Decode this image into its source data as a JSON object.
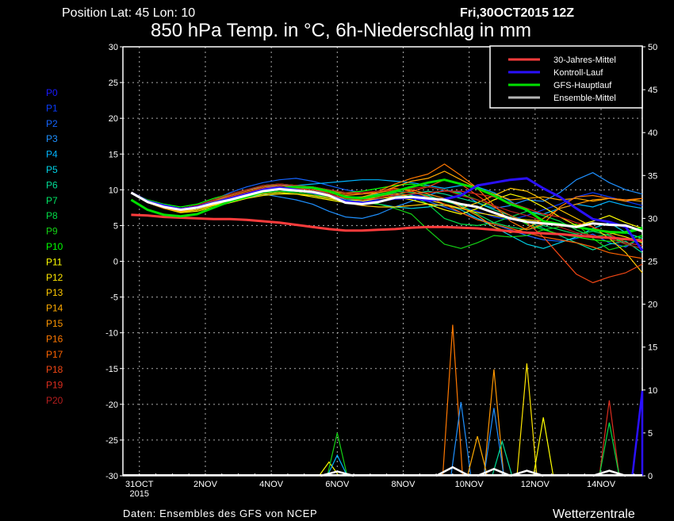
{
  "header": {
    "position": "Position  Lat: 45 Lon: 10",
    "run": "Fri,30OCT2015 12Z",
    "title": "850 hPa Temp. in °C, 6h-Niederschlag in mm"
  },
  "footer": {
    "source": "Daten: Ensembles des GFS von NCEP",
    "brand": "Wetterzentrale"
  },
  "members": [
    {
      "label": "P0",
      "color": "#1a1aff"
    },
    {
      "label": "P1",
      "color": "#0a3cff"
    },
    {
      "label": "P2",
      "color": "#1464ff"
    },
    {
      "label": "P3",
      "color": "#1e90ff"
    },
    {
      "label": "P4",
      "color": "#00b4ff"
    },
    {
      "label": "P5",
      "color": "#00d2e6"
    },
    {
      "label": "P6",
      "color": "#00dc96"
    },
    {
      "label": "P7",
      "color": "#00e664"
    },
    {
      "label": "P8",
      "color": "#00dc46"
    },
    {
      "label": "P9",
      "color": "#14d214"
    },
    {
      "label": "P10",
      "color": "#00ff00"
    },
    {
      "label": "P11",
      "color": "#ffff00"
    },
    {
      "label": "P12",
      "color": "#ffe600"
    },
    {
      "label": "P13",
      "color": "#ffc800"
    },
    {
      "label": "P14",
      "color": "#ffaa00"
    },
    {
      "label": "P15",
      "color": "#ff9600"
    },
    {
      "label": "P16",
      "color": "#ff7800"
    },
    {
      "label": "P17",
      "color": "#ff6400"
    },
    {
      "label": "P18",
      "color": "#f04614"
    },
    {
      "label": "P19",
      "color": "#dc2d1e"
    },
    {
      "label": "P20",
      "color": "#b41e1e"
    }
  ],
  "chart_data": {
    "type": "line",
    "title": "850 hPa Temp. in °C, 6h-Niederschlag in mm",
    "x_ticks": [
      {
        "time": "10-31 00Z",
        "label": "31OCT",
        "label2": "2015"
      },
      {
        "time": "11-02 00Z",
        "label": "2NOV"
      },
      {
        "time": "11-04 00Z",
        "label": "4NOV"
      },
      {
        "time": "11-06 00Z",
        "label": "6NOV"
      },
      {
        "time": "11-08 00Z",
        "label": "8NOV"
      },
      {
        "time": "11-10 00Z",
        "label": "10NOV"
      },
      {
        "time": "11-12 00Z",
        "label": "12NOV"
      },
      {
        "time": "11-14 00Z",
        "label": "14NOV"
      }
    ],
    "xlim": [
      "10-30 12Z",
      "11-15 06Z"
    ],
    "y_left": {
      "lim": [
        -30,
        30
      ],
      "ticks": [
        30,
        25,
        20,
        15,
        10,
        5,
        0,
        -5,
        -10,
        -15,
        -20,
        -25,
        -30
      ]
    },
    "y_right": {
      "lim": [
        0,
        50
      ],
      "ticks": [
        50,
        45,
        40,
        35,
        30,
        25,
        20,
        15,
        10,
        5,
        0
      ]
    },
    "grid": true,
    "legend_placement": "top-right",
    "legend": [
      {
        "name": "30-Jahres-Mittel",
        "color": "#ff3c3c"
      },
      {
        "name": "Kontroll-Lauf",
        "color": "#2a10ff"
      },
      {
        "name": "GFS-Hauptlauf",
        "color": "#00e000"
      },
      {
        "name": "Ensemble-Mittel",
        "color": "#b4b4b4"
      }
    ],
    "times": [
      "10-30 18Z",
      "10-31 06Z",
      "10-31 18Z",
      "11-01 06Z",
      "11-01 18Z",
      "11-02 06Z",
      "11-02 18Z",
      "11-03 06Z",
      "11-03 18Z",
      "11-04 06Z",
      "11-04 18Z",
      "11-05 06Z",
      "11-05 18Z",
      "11-06 06Z",
      "11-06 18Z",
      "11-07 06Z",
      "11-07 18Z",
      "11-08 06Z",
      "11-08 18Z",
      "11-09 06Z",
      "11-09 18Z",
      "11-10 06Z",
      "11-10 18Z",
      "11-11 06Z",
      "11-11 18Z",
      "11-12 06Z",
      "11-12 18Z",
      "11-13 06Z",
      "11-13 18Z",
      "11-14 06Z",
      "11-14 18Z",
      "11-15 06Z"
    ],
    "temperature": {
      "members": [
        [
          9.6,
          8.4,
          7.8,
          7.4,
          7.7,
          8.4,
          9.0,
          9.6,
          10.2,
          10.6,
          10.4,
          10.0,
          9.4,
          8.6,
          8.4,
          8.7,
          9.2,
          9.3,
          9.0,
          8.6,
          7.6,
          7.0,
          6.2,
          5.8,
          6.4,
          7.2,
          8.0,
          9.0,
          9.6,
          9.0,
          8.4,
          7.8
        ],
        [
          9.6,
          8.2,
          7.4,
          7.0,
          7.6,
          8.6,
          9.6,
          10.4,
          11.0,
          11.4,
          11.6,
          11.2,
          10.6,
          10.0,
          9.6,
          9.4,
          9.2,
          8.8,
          8.4,
          7.6,
          6.8,
          6.0,
          5.2,
          4.4,
          3.6,
          3.0,
          2.8,
          3.2,
          3.8,
          2.6,
          2.0,
          3.4
        ],
        [
          9.6,
          8.3,
          7.5,
          7.0,
          7.2,
          7.8,
          8.2,
          8.8,
          9.4,
          9.0,
          8.6,
          8.0,
          7.0,
          6.2,
          6.0,
          6.6,
          7.6,
          8.4,
          9.2,
          10.0,
          9.6,
          8.2,
          7.4,
          7.8,
          8.6,
          8.4,
          9.6,
          11.4,
          12.4,
          11.0,
          10.0,
          9.4
        ],
        [
          9.6,
          8.4,
          7.8,
          7.4,
          7.8,
          8.6,
          9.4,
          10.0,
          10.4,
          10.6,
          10.6,
          10.8,
          11.0,
          11.2,
          11.4,
          11.4,
          11.2,
          11.0,
          10.6,
          10.2,
          10.6,
          10.4,
          9.6,
          8.4,
          7.0,
          6.6,
          7.4,
          8.0,
          7.6,
          8.4,
          7.8,
          7.4
        ],
        [
          9.6,
          8.2,
          7.6,
          7.2,
          7.4,
          8.0,
          8.6,
          9.2,
          9.6,
          9.8,
          9.8,
          9.6,
          9.2,
          8.6,
          8.2,
          8.0,
          7.6,
          7.4,
          7.6,
          8.0,
          7.2,
          6.0,
          4.8,
          3.6,
          2.4,
          1.8,
          2.6,
          3.4,
          4.6,
          5.4,
          4.0,
          3.2
        ],
        [
          9.6,
          8.3,
          7.6,
          7.2,
          7.6,
          8.2,
          8.8,
          9.4,
          10.0,
          10.2,
          10.0,
          9.8,
          9.4,
          8.6,
          8.6,
          8.8,
          9.0,
          9.4,
          9.8,
          9.4,
          8.8,
          8.2,
          7.2,
          6.4,
          5.6,
          4.6,
          3.6,
          2.6,
          1.6,
          2.4,
          2.8,
          1.2
        ],
        [
          9.6,
          8.4,
          7.6,
          7.3,
          7.8,
          8.6,
          9.2,
          9.8,
          10.4,
          10.8,
          10.6,
          10.2,
          9.6,
          9.0,
          9.0,
          9.4,
          9.8,
          9.6,
          9.2,
          8.4,
          7.8,
          6.6,
          5.4,
          4.8,
          4.4,
          5.0,
          4.4,
          3.8,
          4.2,
          3.6,
          2.4,
          1.8
        ],
        [
          9.6,
          8.2,
          7.4,
          7.0,
          7.2,
          7.8,
          8.4,
          9.0,
          9.6,
          9.8,
          9.6,
          9.4,
          8.8,
          8.4,
          8.6,
          9.0,
          9.6,
          9.2,
          8.0,
          6.0,
          5.2,
          5.0,
          5.4,
          6.2,
          7.0,
          6.4,
          5.6,
          4.4,
          3.4,
          3.8,
          4.2,
          4.8
        ],
        [
          9.6,
          8.4,
          7.8,
          7.4,
          7.6,
          8.2,
          8.8,
          9.2,
          9.6,
          9.8,
          9.6,
          9.4,
          9.0,
          8.4,
          8.2,
          8.0,
          7.4,
          6.6,
          4.4,
          2.4,
          1.8,
          2.6,
          3.6,
          3.4,
          3.6,
          4.4,
          4.8,
          5.2,
          3.2,
          1.6,
          2.2,
          3.4
        ],
        [
          9.6,
          8.6,
          8.0,
          7.6,
          8.0,
          8.8,
          9.4,
          10.0,
          10.6,
          10.8,
          10.6,
          10.2,
          9.8,
          9.6,
          9.8,
          10.2,
          10.6,
          10.8,
          10.4,
          10.0,
          9.4,
          8.6,
          7.6,
          6.4,
          5.2,
          4.4,
          3.8,
          3.4,
          3.0,
          2.8,
          3.0,
          3.6
        ],
        [
          9.6,
          8.4,
          7.6,
          7.0,
          7.2,
          7.8,
          8.4,
          9.0,
          9.4,
          9.6,
          9.4,
          9.0,
          8.6,
          8.2,
          8.4,
          8.8,
          9.0,
          8.6,
          8.0,
          7.2,
          6.6,
          7.4,
          8.6,
          9.4,
          8.8,
          7.6,
          6.2,
          5.0,
          5.6,
          6.4,
          5.4,
          4.6
        ],
        [
          9.6,
          8.2,
          7.4,
          6.8,
          7.0,
          7.6,
          8.2,
          8.8,
          9.2,
          9.4,
          9.4,
          9.2,
          8.8,
          8.4,
          8.6,
          9.0,
          9.4,
          9.0,
          8.6,
          8.0,
          7.4,
          6.8,
          6.4,
          6.0,
          5.8,
          5.6,
          5.2,
          4.8,
          4.4,
          4.0,
          3.4,
          2.6
        ],
        [
          9.6,
          8.3,
          7.5,
          6.9,
          7.2,
          7.9,
          8.6,
          9.2,
          9.8,
          10.0,
          9.8,
          9.6,
          9.0,
          8.2,
          7.8,
          7.6,
          7.6,
          7.8,
          8.0,
          7.8,
          7.4,
          8.2,
          9.2,
          10.2,
          9.8,
          8.6,
          7.2,
          6.0,
          4.8,
          3.2,
          1.2,
          -1.6
        ],
        [
          9.6,
          8.4,
          7.6,
          7.1,
          7.4,
          8.0,
          8.8,
          9.4,
          10.0,
          10.2,
          10.0,
          9.8,
          9.2,
          8.8,
          9.0,
          9.6,
          10.4,
          11.2,
          11.6,
          12.6,
          11.4,
          10.2,
          9.4,
          8.6,
          8.8,
          9.0,
          8.6,
          8.8,
          8.4,
          8.8,
          8.6,
          8.4
        ],
        [
          9.6,
          8.2,
          7.4,
          7.0,
          7.4,
          8.2,
          9.0,
          9.6,
          10.2,
          10.4,
          10.2,
          10.0,
          9.6,
          9.2,
          9.4,
          9.6,
          10.0,
          10.0,
          9.4,
          8.8,
          7.6,
          6.4,
          4.8,
          4.0,
          4.6,
          6.0,
          7.4,
          8.0,
          8.6,
          8.8,
          8.4,
          8.8
        ],
        [
          9.6,
          8.5,
          7.8,
          7.4,
          7.8,
          8.6,
          9.4,
          10.0,
          10.6,
          10.8,
          10.6,
          10.4,
          10.0,
          9.6,
          9.4,
          9.8,
          10.8,
          11.6,
          12.2,
          13.6,
          12.0,
          10.2,
          7.8,
          5.6,
          4.4,
          5.2,
          7.6,
          9.0,
          9.2,
          8.8,
          8.6,
          8.8
        ],
        [
          9.6,
          8.3,
          7.6,
          7.2,
          7.6,
          8.4,
          9.2,
          9.8,
          10.4,
          10.6,
          10.4,
          10.2,
          9.8,
          9.4,
          9.6,
          9.8,
          10.2,
          9.8,
          9.0,
          8.0,
          6.8,
          5.8,
          5.2,
          4.6,
          4.0,
          3.4,
          3.0,
          2.6,
          2.0,
          1.2,
          0.8,
          0.4
        ],
        [
          9.6,
          8.4,
          7.7,
          7.3,
          7.6,
          8.2,
          9.0,
          9.6,
          10.2,
          10.4,
          10.2,
          10.0,
          9.6,
          9.0,
          8.8,
          9.0,
          9.4,
          9.8,
          10.4,
          11.4,
          10.8,
          9.2,
          7.6,
          6.4,
          5.4,
          3.4,
          0.8,
          -1.8,
          -3.0,
          -2.2,
          -1.6,
          -0.4
        ],
        [
          9.6,
          8.2,
          7.5,
          7.1,
          7.4,
          8.0,
          8.8,
          9.4,
          10.0,
          10.2,
          10.0,
          9.8,
          9.4,
          8.8,
          8.6,
          8.8,
          9.2,
          9.4,
          9.6,
          9.8,
          9.8,
          9.4,
          9.0,
          8.2,
          7.4,
          6.6,
          6.2,
          5.4,
          4.8,
          3.8,
          2.6,
          2.2
        ],
        [
          9.6,
          8.4,
          7.8,
          7.4,
          7.8,
          8.6,
          9.4,
          10.0,
          10.6,
          10.8,
          10.6,
          10.4,
          10.0,
          9.6,
          9.6,
          9.8,
          10.0,
          10.2,
          10.4,
          10.0,
          9.2,
          8.6,
          7.8,
          7.0,
          6.4,
          5.6,
          4.8,
          4.0,
          3.6,
          3.2,
          2.4,
          1.8
        ]
      ],
      "climate_mean": [
        6.5,
        6.4,
        6.2,
        6.1,
        6.0,
        5.9,
        5.9,
        5.8,
        5.6,
        5.4,
        5.1,
        4.8,
        4.5,
        4.3,
        4.3,
        4.4,
        4.5,
        4.7,
        4.8,
        4.8,
        4.7,
        4.6,
        4.4,
        4.2,
        4.0,
        3.9,
        3.8,
        3.6,
        3.4,
        3.3,
        3.1,
        2.9
      ],
      "control": [
        9.6,
        8.4,
        7.8,
        7.3,
        7.6,
        8.2,
        8.8,
        9.4,
        10.0,
        10.3,
        10.0,
        9.6,
        9.2,
        8.4,
        8.2,
        8.4,
        8.8,
        8.9,
        8.5,
        8.7,
        9.2,
        10.6,
        11.0,
        11.4,
        11.6,
        10.2,
        9.0,
        7.4,
        5.9,
        5.5,
        4.8,
        1.5
      ],
      "gfs": [
        8.6,
        7.2,
        6.5,
        6.3,
        6.6,
        7.5,
        8.4,
        9.0,
        9.7,
        10.2,
        10.4,
        10.3,
        9.8,
        9.0,
        8.8,
        9.2,
        9.8,
        10.4,
        11.0,
        11.4,
        10.8,
        10.2,
        9.2,
        8.0,
        7.2,
        5.6,
        5.2,
        4.8,
        4.4,
        4.1,
        4.0,
        4.6
      ],
      "ensemble_mean": [
        9.6,
        8.3,
        7.6,
        7.2,
        7.5,
        8.1,
        8.6,
        9.2,
        9.8,
        10.1,
        9.9,
        9.7,
        9.2,
        8.2,
        8.0,
        8.3,
        8.9,
        9.0,
        8.8,
        8.6,
        8.0,
        7.6,
        6.8,
        6.0,
        5.5,
        5.3,
        5.1,
        4.8,
        5.3,
        5.1,
        5.0,
        4.2
      ]
    },
    "precipitation_peaks": [
      {
        "series": "P16",
        "peaks": [
          [
            "11-09 12Z",
            17.6
          ]
        ]
      },
      {
        "series": "P15",
        "peaks": [
          [
            "11-10 18Z",
            12.4
          ]
        ]
      },
      {
        "series": "P3",
        "peaks": [
          [
            "11-09 18Z",
            8.6
          ],
          [
            "11-10 18Z",
            7.9
          ]
        ]
      },
      {
        "series": "P12",
        "peaks": [
          [
            "11-11 18Z",
            13.1
          ]
        ]
      },
      {
        "series": "P11",
        "peaks": [
          [
            "11-05 18Z",
            1.6
          ],
          [
            "11-12 06Z",
            6.8
          ]
        ]
      },
      {
        "series": "P9",
        "peaks": [
          [
            "11-06 00Z",
            5.0
          ]
        ]
      },
      {
        "series": "P4",
        "peaks": [
          [
            "11-06 00Z",
            2.4
          ]
        ]
      },
      {
        "series": "P6",
        "peaks": [
          [
            "11-11 00Z",
            4.0
          ]
        ]
      },
      {
        "series": "P14",
        "peaks": [
          [
            "11-10 06Z",
            4.6
          ]
        ]
      },
      {
        "series": "P19",
        "peaks": [
          [
            "11-14 06Z",
            8.8
          ]
        ]
      },
      {
        "series": "P8",
        "peaks": [
          [
            "11-14 06Z",
            6.2
          ]
        ]
      },
      {
        "series": "control",
        "peaks": [
          [
            "11-15 06Z",
            9.9
          ]
        ]
      },
      {
        "series": "ensemble_mean",
        "peaks": [
          [
            "11-06 00Z",
            0.5
          ],
          [
            "11-09 12Z",
            1.0
          ],
          [
            "11-10 18Z",
            0.8
          ],
          [
            "11-11 18Z",
            0.6
          ],
          [
            "11-14 06Z",
            0.6
          ]
        ]
      }
    ]
  }
}
